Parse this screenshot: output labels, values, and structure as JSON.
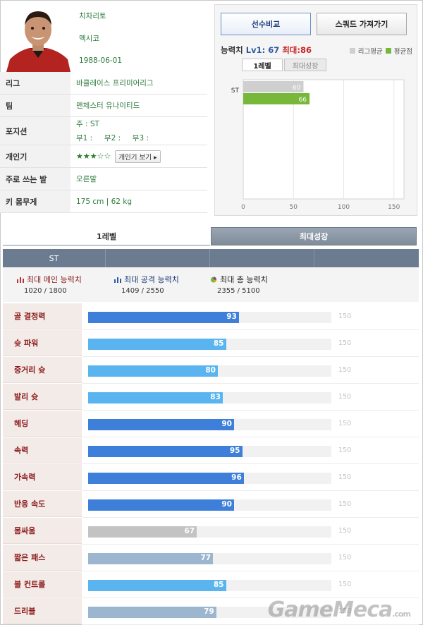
{
  "player": {
    "name": "치차리토",
    "nation": "멕시코",
    "birth": "1988-06-01",
    "rows": [
      {
        "label": "리그",
        "value": "바클레이스 프리미어리그"
      },
      {
        "label": "팀",
        "value": "맨체스터 유나이티드"
      },
      {
        "label": "포지션",
        "value": "주 : ST",
        "value2": "부1 :     부2 :     부3 :"
      },
      {
        "label": "개인기",
        "stars": "★★★☆☆",
        "button": "개인기 보기 ▸"
      },
      {
        "label": "주로 쓰는 발",
        "value": "오른발"
      },
      {
        "label": "키 몸무게",
        "value": "175 cm | 62 kg"
      }
    ]
  },
  "panel": {
    "compare_button": "선수비교",
    "squad_button": "스쿼드 가져가기",
    "ability_label": "능력치",
    "ability_lv": "Lv1: 67",
    "ability_max": "최대:86",
    "legend_league": "리그평균",
    "legend_avg": "평균점",
    "tab_lv1": "1레벨",
    "tab_max": "최대성장",
    "colors": {
      "league": "#cfcfcf",
      "avg": "#77b83a"
    }
  },
  "chart_data": {
    "type": "bar",
    "orientation": "horizontal",
    "categories": [
      "ST"
    ],
    "series": [
      {
        "name": "리그평균",
        "values": [
          60
        ]
      },
      {
        "name": "평균점",
        "values": [
          66
        ]
      }
    ],
    "xticks": [
      "0",
      "50",
      "100",
      "150"
    ],
    "xlim": [
      0,
      160
    ]
  },
  "tabs": {
    "level1": "1레벨",
    "max_growth": "최대성장"
  },
  "position_bar": {
    "cells": [
      "ST",
      "",
      "",
      ""
    ]
  },
  "summary": [
    {
      "label": "최대 메인 능력치",
      "value": "1020 / 1800",
      "color": "#8b1a1a"
    },
    {
      "label": "최대 공격 능력치",
      "value": "1409 / 2550",
      "color": "#1d3d7a"
    },
    {
      "label": "최대 총 능력치",
      "value": "2355 / 5100",
      "color": "#222222"
    }
  ],
  "stats": {
    "max": 150,
    "max_label": "150",
    "items": [
      {
        "name": "골 결정력",
        "value": 93,
        "label": "93",
        "color": "#3d7fd9"
      },
      {
        "name": "슛 파워",
        "value": 85,
        "label": "85",
        "color": "#5ab4f0"
      },
      {
        "name": "중거리 슛",
        "value": 80,
        "label": "80",
        "color": "#5ab4f0"
      },
      {
        "name": "발리 슛",
        "value": 83,
        "label": "83",
        "color": "#5ab4f0"
      },
      {
        "name": "헤딩",
        "value": 90,
        "label": "90",
        "color": "#3d7fd9"
      },
      {
        "name": "속력",
        "value": 95,
        "label": "95",
        "color": "#3d7fd9"
      },
      {
        "name": "가속력",
        "value": 96,
        "label": "96",
        "color": "#3d7fd9"
      },
      {
        "name": "반응 속도",
        "value": 90,
        "label": "90",
        "color": "#3d7fd9"
      },
      {
        "name": "몸싸움",
        "value": 67,
        "label": "67",
        "color": "#c3c3c3"
      },
      {
        "name": "짧은 패스",
        "value": 77,
        "label": "77",
        "color": "#9db6cf"
      },
      {
        "name": "볼 컨트롤",
        "value": 85,
        "label": "85",
        "color": "#5ab4f0"
      },
      {
        "name": "드리블",
        "value": 79,
        "label": "79",
        "color": "#9db6cf"
      }
    ]
  },
  "watermark": {
    "brand": "GameMeca",
    "suffix": ".com"
  }
}
